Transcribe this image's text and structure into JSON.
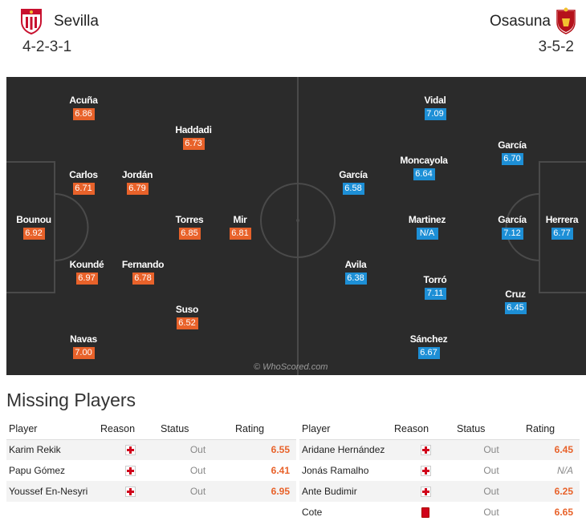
{
  "header": {
    "home": {
      "name": "Sevilla",
      "formation": "4-2-3-1",
      "crest": "sevilla-crest-icon"
    },
    "away": {
      "name": "Osasuna",
      "formation": "3-5-2",
      "crest": "osasuna-crest-icon"
    }
  },
  "colors": {
    "pitch": "#2b2b2b",
    "home_rating": "#e8622a",
    "away_rating": "#1d8fd6",
    "lines": "#4a4a4a"
  },
  "lineup": {
    "home": [
      {
        "name": "Bounou",
        "rating": "6.92"
      },
      {
        "name": "Acuña",
        "rating": "6.86"
      },
      {
        "name": "Carlos",
        "rating": "6.71"
      },
      {
        "name": "Koundé",
        "rating": "6.97"
      },
      {
        "name": "Navas",
        "rating": "7.00"
      },
      {
        "name": "Jordán",
        "rating": "6.79"
      },
      {
        "name": "Fernando",
        "rating": "6.78"
      },
      {
        "name": "Haddadi",
        "rating": "6.73"
      },
      {
        "name": "Torres",
        "rating": "6.85"
      },
      {
        "name": "Suso",
        "rating": "6.52"
      },
      {
        "name": "Mir",
        "rating": "6.81"
      }
    ],
    "away": [
      {
        "name": "Herrera",
        "rating": "6.77"
      },
      {
        "name": "García",
        "rating": "6.70"
      },
      {
        "name": "García",
        "rating": "7.12"
      },
      {
        "name": "Cruz",
        "rating": "6.45"
      },
      {
        "name": "Vidal",
        "rating": "7.09"
      },
      {
        "name": "Moncayola",
        "rating": "6.64"
      },
      {
        "name": "Martinez",
        "rating": "N/A"
      },
      {
        "name": "Torró",
        "rating": "7.11"
      },
      {
        "name": "Sánchez",
        "rating": "6.67"
      },
      {
        "name": "García",
        "rating": "6.58"
      },
      {
        "name": "Avila",
        "rating": "6.38"
      }
    ]
  },
  "watermark": "© WhoScored.com",
  "missing": {
    "title": "Missing Players",
    "columns": {
      "player": "Player",
      "reason": "Reason",
      "status": "Status",
      "rating": "Rating"
    },
    "home": [
      {
        "player": "Karim Rekik",
        "reason": "injury-icon",
        "status": "Out",
        "rating": "6.55"
      },
      {
        "player": "Papu Gómez",
        "reason": "injury-icon",
        "status": "Out",
        "rating": "6.41"
      },
      {
        "player": "Youssef En-Nesyri",
        "reason": "injury-icon",
        "status": "Out",
        "rating": "6.95"
      }
    ],
    "away": [
      {
        "player": "Aridane Hernández",
        "reason": "injury-icon",
        "status": "Out",
        "rating": "6.45"
      },
      {
        "player": "Jonás Ramalho",
        "reason": "injury-icon",
        "status": "Out",
        "rating": "N/A"
      },
      {
        "player": "Ante Budimir",
        "reason": "injury-icon",
        "status": "Out",
        "rating": "6.25"
      },
      {
        "player": "Cote",
        "reason": "red-card-icon",
        "status": "Out",
        "rating": "6.65"
      }
    ]
  }
}
